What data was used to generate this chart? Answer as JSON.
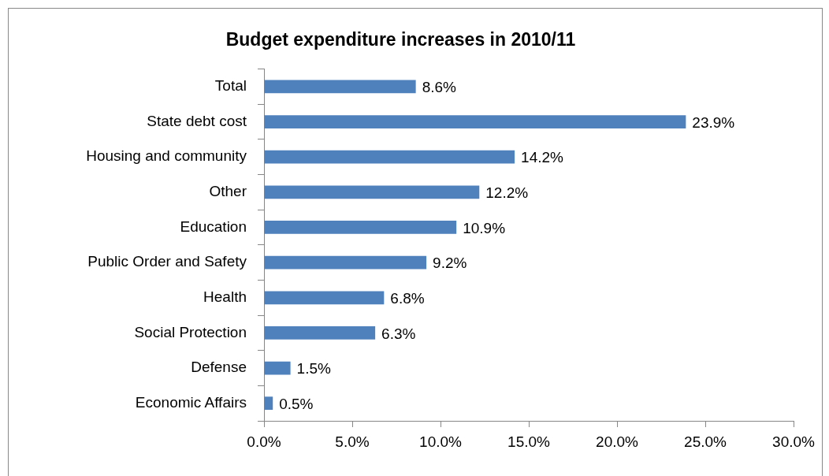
{
  "chart_data": {
    "type": "bar",
    "orientation": "horizontal",
    "title": "Budget expenditure increases in 2010/11",
    "categories": [
      "Total",
      "State debt cost",
      "Housing and community",
      "Other",
      "Education",
      "Public Order and Safety",
      "Health",
      "Social Protection",
      "Defense",
      "Economic Affairs"
    ],
    "values": [
      8.6,
      23.9,
      14.2,
      12.2,
      10.9,
      9.2,
      6.8,
      6.3,
      1.5,
      0.5
    ],
    "value_labels": [
      "8.6%",
      "23.9%",
      "14.2%",
      "12.2%",
      "10.9%",
      "9.2%",
      "6.8%",
      "6.3%",
      "1.5%",
      "0.5%"
    ],
    "color": "#4f81bd",
    "xlim": [
      0,
      30
    ],
    "xticks": [
      {
        "value": 0,
        "label": "0.0%"
      },
      {
        "value": 5,
        "label": "5.0%"
      },
      {
        "value": 10,
        "label": "10.0%"
      },
      {
        "value": 15,
        "label": "15.0%"
      },
      {
        "value": 20,
        "label": "20.0%"
      },
      {
        "value": 25,
        "label": "25.0%"
      },
      {
        "value": 30,
        "label": "30.0%"
      }
    ],
    "grid": false,
    "legend": false
  }
}
